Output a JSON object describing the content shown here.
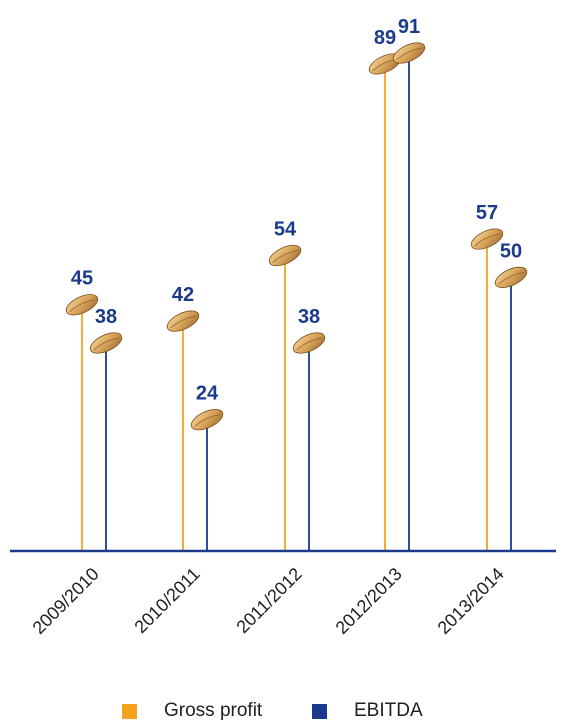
{
  "chart_data": {
    "type": "bar",
    "categories": [
      "2009/2010",
      "2010/2011",
      "2011/2012",
      "2012/2013",
      "2013/2014"
    ],
    "series": [
      {
        "name": "Gross profit",
        "values": [
          45,
          42,
          54,
          89,
          57
        ],
        "color": "#F4A21D"
      },
      {
        "name": "EBITDA",
        "values": [
          38,
          24,
          38,
          91,
          50
        ],
        "color": "#1B3A8C"
      }
    ],
    "ylim": [
      0,
      100
    ],
    "grid": false,
    "legend_position": "bottom",
    "marker_icon": "grain-icon",
    "axis_color": "#1B3A8C"
  },
  "legend": [
    {
      "label": "Gross profit",
      "color": "#F4A21D"
    },
    {
      "label": "EBITDA",
      "color": "#1B3A8C"
    }
  ]
}
